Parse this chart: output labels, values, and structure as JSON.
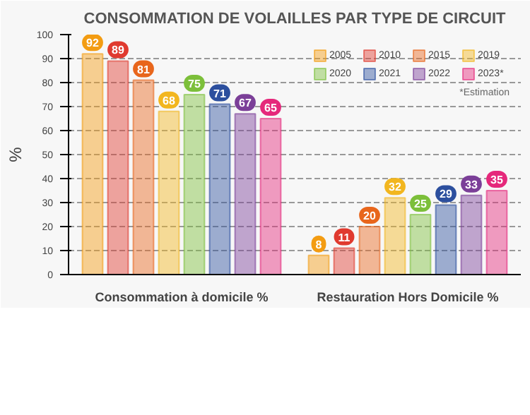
{
  "chart_data": {
    "type": "bar",
    "title": "CONSOMMATION DE VOLAILLES PAR TYPE DE CIRCUIT",
    "ylabel": "%",
    "categories": [
      "Consommation à domicile %",
      "Restauration Hors Domicile %"
    ],
    "series": [
      {
        "name": "2005",
        "color": "#f39c12",
        "values": [
          92,
          8
        ]
      },
      {
        "name": "2010",
        "color": "#e03a2f",
        "values": [
          89,
          11
        ]
      },
      {
        "name": "2015",
        "color": "#e8661c",
        "values": [
          81,
          20
        ]
      },
      {
        "name": "2019",
        "color": "#f2b61f",
        "values": [
          68,
          32
        ]
      },
      {
        "name": "2020",
        "color": "#7cbf3a",
        "values": [
          75,
          25
        ]
      },
      {
        "name": "2021",
        "color": "#2c4f9e",
        "values": [
          71,
          29
        ]
      },
      {
        "name": "2022",
        "color": "#7b3f98",
        "values": [
          67,
          33
        ]
      },
      {
        "name": "2023*",
        "color": "#e5287b",
        "values": [
          65,
          35
        ]
      }
    ],
    "ylim": [
      0,
      100
    ],
    "yticks": [
      0,
      10,
      20,
      30,
      40,
      50,
      60,
      70,
      80,
      90,
      100
    ],
    "grid": "y",
    "legend": "top right",
    "data_labels": true,
    "annotations": [
      "*Estimation"
    ]
  }
}
